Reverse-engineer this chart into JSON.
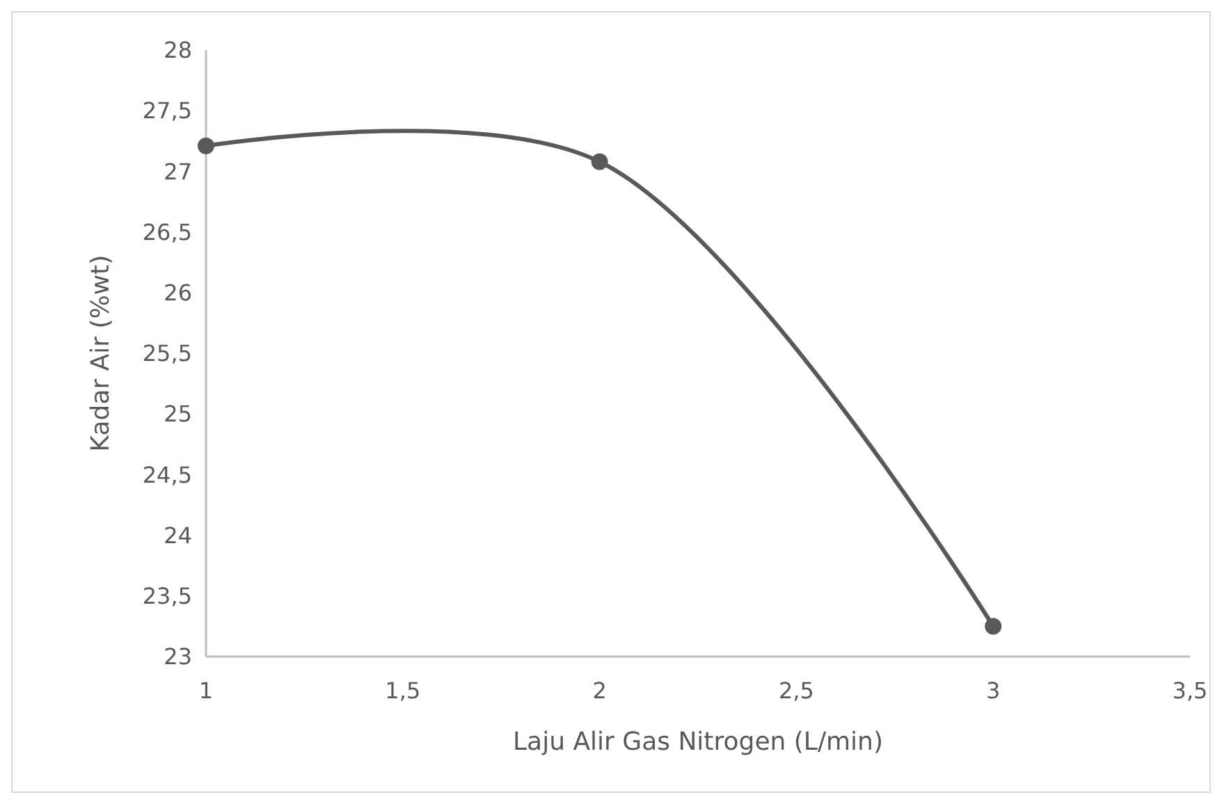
{
  "chart_data": {
    "type": "line",
    "xlabel": "Laju Alir Gas Nitrogen (L/min)",
    "ylabel": "Kadar Air (%wt)",
    "x": [
      1,
      2,
      3
    ],
    "series": [
      {
        "color": "#595959",
        "values": [
          27.21,
          27.08,
          23.25
        ]
      }
    ],
    "xlim": [
      1,
      3.5
    ],
    "xticks": [
      1,
      {
        "value": 1.5,
        "label": "1,5"
      },
      2,
      {
        "value": 2.5,
        "label": "2,5"
      },
      3,
      {
        "value": 3.5,
        "label": "3,5"
      }
    ],
    "ylim": [
      23,
      28
    ],
    "yticks": [
      23,
      {
        "value": 23.5,
        "label": "23,5"
      },
      24,
      {
        "value": 24.5,
        "label": "24,5"
      },
      25,
      {
        "value": 25.5,
        "label": "25,5"
      },
      26,
      {
        "value": 26.5,
        "label": "26,5"
      },
      27,
      {
        "value": 27.5,
        "label": "27,5"
      },
      28
    ],
    "grid": false,
    "marker": "circle",
    "line_style": "solid"
  }
}
